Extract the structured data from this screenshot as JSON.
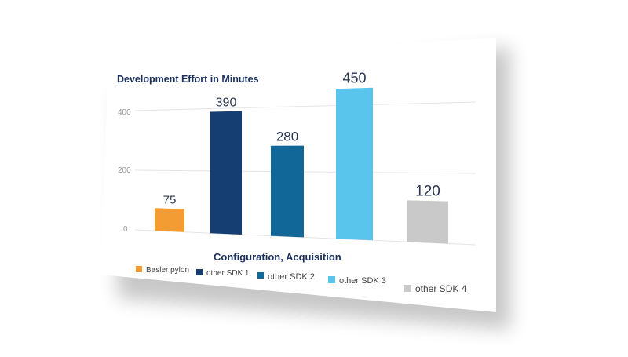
{
  "chart_data": {
    "type": "bar",
    "title": "Development Effort in Minutes",
    "xlabel": "Configuration, Acquisition",
    "ylabel": "",
    "categories": [
      "Basler pylon",
      "other SDK 1",
      "other SDK 2",
      "other SDK 3",
      "other SDK 4"
    ],
    "values": [
      75,
      390,
      280,
      450,
      120
    ],
    "yticks": [
      "0",
      "200",
      "400"
    ],
    "ylim": [
      0,
      460
    ],
    "grid": true,
    "legend_position": "bottom",
    "colors": [
      "#f39c34",
      "#153f73",
      "#126799",
      "#5ac5ec",
      "#c9c9c9"
    ]
  },
  "colors": {
    "title": "#1b2f5c",
    "tick": "#9a9a9a",
    "grid": "#e4e4e4",
    "value_label": "#2a3550",
    "legend_text": "#444444"
  }
}
